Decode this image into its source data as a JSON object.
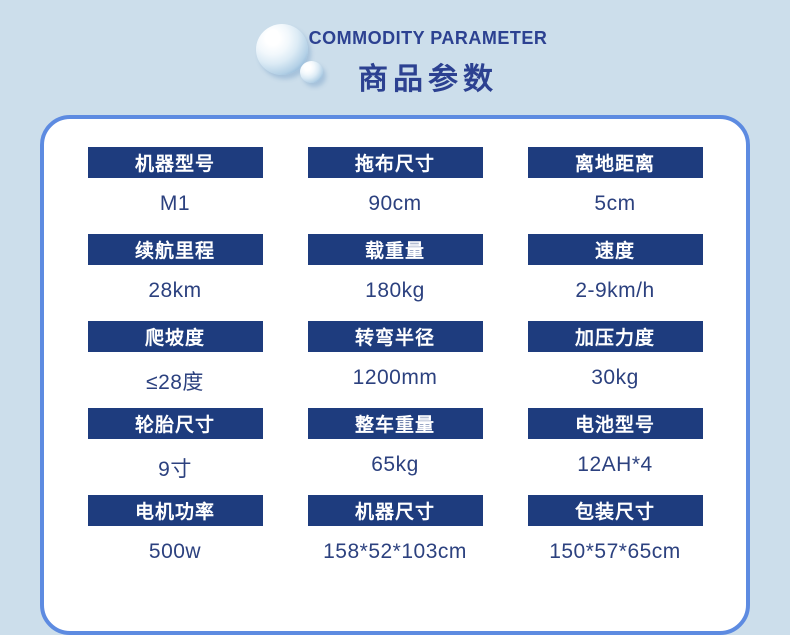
{
  "colors": {
    "page_background": "#ccdeeb",
    "panel_border": "#5d8be1",
    "panel_background": "#ffffff",
    "label_background": "#1e3c7e",
    "label_text": "#ffffff",
    "value_text": "#2c417f",
    "title_text": "#2c4191"
  },
  "header": {
    "icon": "water-drops-icon",
    "title_en": "COMMODITY PARAMETER",
    "title_zh": "商品参数"
  },
  "parameters": [
    {
      "label": "机器型号",
      "value": "M1"
    },
    {
      "label": "拖布尺寸",
      "value": "90cm"
    },
    {
      "label": "离地距离",
      "value": "5cm"
    },
    {
      "label": "续航里程",
      "value": "28km"
    },
    {
      "label": "载重量",
      "value": "180kg"
    },
    {
      "label": "速度",
      "value": "2-9km/h"
    },
    {
      "label": "爬坡度",
      "value": "≤28度"
    },
    {
      "label": "转弯半径",
      "value": "1200mm"
    },
    {
      "label": "加压力度",
      "value": "30kg"
    },
    {
      "label": "轮胎尺寸",
      "value": "9寸"
    },
    {
      "label": "整车重量",
      "value": "65kg"
    },
    {
      "label": "电池型号",
      "value": "12AH*4"
    },
    {
      "label": "电机功率",
      "value": "500w"
    },
    {
      "label": "机器尺寸",
      "value": "158*52*103cm"
    },
    {
      "label": "包装尺寸",
      "value": "150*57*65cm"
    }
  ]
}
